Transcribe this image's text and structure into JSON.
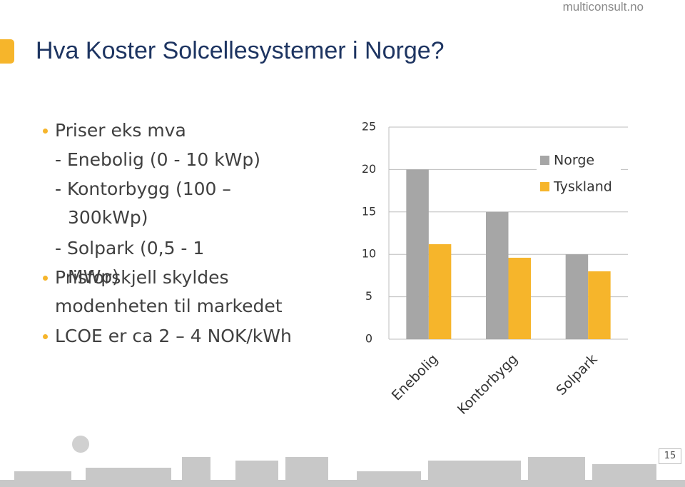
{
  "header": {
    "site": "multiconsult.no",
    "title": "Hva Koster Solcellesystemer i Norge?"
  },
  "bullets": [
    "Priser eks mva",
    "- Enebolig (0 - 10 kWp)",
    "- Kontorbygg (100 – 300kWp)",
    "- Solpark (0,5 - 1 MWp)",
    "Prisforskjell skyldes modenheten til markedet",
    "LCOE er ca 2 – 4 NOK/kWh"
  ],
  "page_number": "15",
  "chart_data": {
    "type": "bar",
    "categories": [
      "Enebolig",
      "Kontorbygg",
      "Solpark"
    ],
    "series": [
      {
        "name": "Norge",
        "color": "#a6a6a6",
        "values": [
          20,
          15,
          10
        ]
      },
      {
        "name": "Tyskland",
        "color": "#f6b52b",
        "values": [
          11.2,
          9.6,
          8
        ]
      }
    ],
    "ylim": [
      0,
      25
    ],
    "yticks": [
      0,
      5,
      10,
      15,
      20,
      25
    ],
    "grid": true,
    "legend": "top-right"
  }
}
